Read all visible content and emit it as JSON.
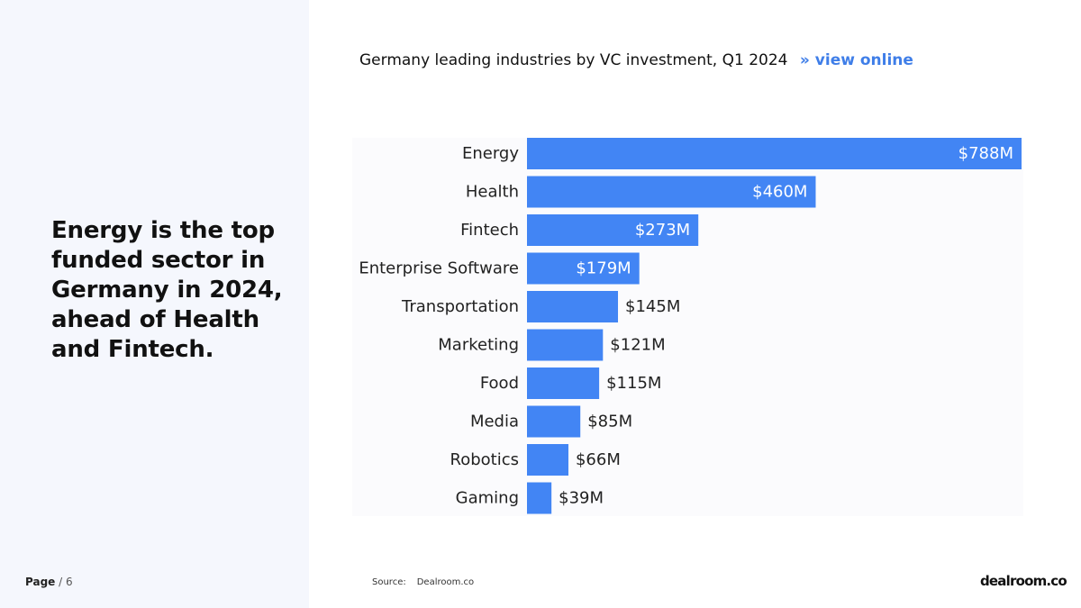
{
  "headline": "Energy is the top funded sector in Germany in 2024, ahead of Health and Fintech.",
  "page": {
    "label": "Page",
    "separator": " / ",
    "number": "6"
  },
  "header": {
    "title": "Germany leading industries by VC investment, Q1 2024",
    "link_arrow": "»",
    "link_label": "view online"
  },
  "source": {
    "label": "Source:",
    "value": "Dealroom.co"
  },
  "logo": "dealroom.co",
  "colors": {
    "bar": "#4285f4",
    "accent": "#3f7ee8",
    "panel": "#f5f7fd"
  },
  "chart_data": {
    "type": "bar",
    "orientation": "horizontal",
    "title": "Germany leading industries by VC investment, Q1 2024",
    "unit": "$M",
    "categories": [
      "Energy",
      "Health",
      "Fintech",
      "Enterprise Software",
      "Transportation",
      "Marketing",
      "Food",
      "Media",
      "Robotics",
      "Gaming"
    ],
    "values": [
      788,
      460,
      273,
      179,
      145,
      121,
      115,
      85,
      66,
      39
    ],
    "data_labels": [
      "$788M",
      "$460M",
      "$273M",
      "$179M",
      "$145M",
      "$121M",
      "$115M",
      "$85M",
      "$66M",
      "$39M"
    ],
    "xlim": [
      0,
      788
    ],
    "grid": false,
    "legend": "none"
  }
}
